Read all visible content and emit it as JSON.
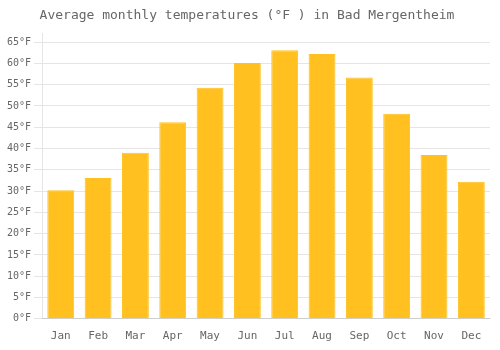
{
  "chart_data": {
    "type": "bar",
    "title": "Average monthly temperatures (°F ) in Bad Mergentheim",
    "categories": [
      "Jan",
      "Feb",
      "Mar",
      "Apr",
      "May",
      "Jun",
      "Jul",
      "Aug",
      "Sep",
      "Oct",
      "Nov",
      "Dec"
    ],
    "values": [
      30.2,
      33.1,
      39.0,
      46.2,
      54.3,
      60.1,
      63.1,
      62.2,
      56.7,
      48.2,
      38.5,
      32.2
    ],
    "color": "#FFC020",
    "ylim": [
      0,
      67
    ],
    "yticks": [
      {
        "value": 0,
        "label": "0°F"
      },
      {
        "value": 5,
        "label": "5°F"
      },
      {
        "value": 10,
        "label": "10°F"
      },
      {
        "value": 15,
        "label": "15°F"
      },
      {
        "value": 20,
        "label": "20°F"
      },
      {
        "value": 25,
        "label": "25°F"
      },
      {
        "value": 30,
        "label": "30°F"
      },
      {
        "value": 35,
        "label": "35°F"
      },
      {
        "value": 40,
        "label": "40°F"
      },
      {
        "value": 45,
        "label": "45°F"
      },
      {
        "value": 50,
        "label": "50°F"
      },
      {
        "value": 55,
        "label": "55°F"
      },
      {
        "value": 60,
        "label": "60°F"
      },
      {
        "value": 65,
        "label": "65°F"
      }
    ],
    "grid": true
  }
}
